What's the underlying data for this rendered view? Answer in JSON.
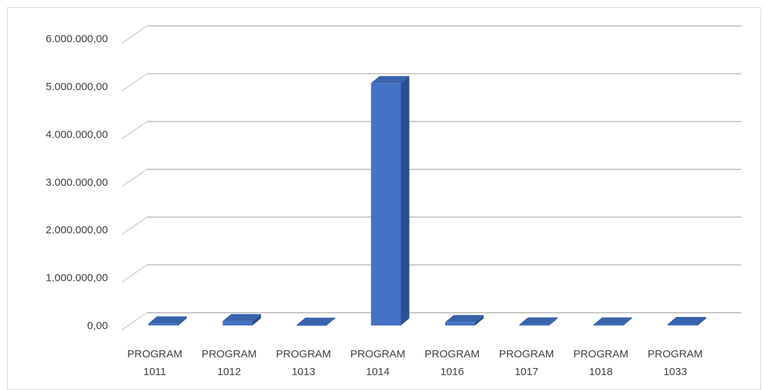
{
  "chart_data": {
    "type": "bar",
    "title": "",
    "xlabel": "",
    "ylabel": "",
    "categories": [
      [
        "PROGRAM",
        "1011"
      ],
      [
        "PROGRAM",
        "1012"
      ],
      [
        "PROGRAM",
        "1013"
      ],
      [
        "PROGRAM",
        "1014"
      ],
      [
        "PROGRAM",
        "1016"
      ],
      [
        "PROGRAM",
        "1017"
      ],
      [
        "PROGRAM",
        "1018"
      ],
      [
        "PROGRAM",
        "1033"
      ]
    ],
    "values": [
      40000,
      90000,
      15000,
      5070000,
      70000,
      20000,
      20000,
      30000
    ],
    "ylim": [
      0,
      6000000
    ],
    "yticks": [
      {
        "value": 0,
        "label": "0,00"
      },
      {
        "value": 1000000,
        "label": "1.000.000,00"
      },
      {
        "value": 2000000,
        "label": "2.000.000,00"
      },
      {
        "value": 3000000,
        "label": "3.000.000,00"
      },
      {
        "value": 4000000,
        "label": "4.000.000,00"
      },
      {
        "value": 5000000,
        "label": "5.000.000,00"
      },
      {
        "value": 6000000,
        "label": "6.000.000,00"
      }
    ],
    "grid": true,
    "style": "3d-column",
    "colors": {
      "front": "#4472c4",
      "top": "#3a63ad",
      "side": "#2c4f8f",
      "grid": "#bfbfbf",
      "text": "#404040"
    }
  }
}
